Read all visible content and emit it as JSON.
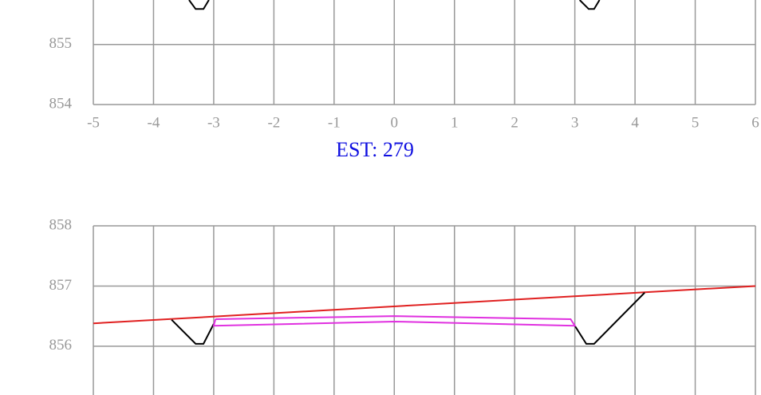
{
  "chart_data": [
    {
      "type": "line",
      "xlim": [
        -5,
        6
      ],
      "xticks": [
        -5,
        -4,
        -3,
        -2,
        -1,
        0,
        1,
        2,
        3,
        4,
        5,
        6
      ],
      "ylim": [
        854,
        855.74
      ],
      "yticks": [
        854,
        855
      ],
      "grid": true,
      "lines": [
        {
          "color": "#000000",
          "x": [
            -3.41,
            -3.3,
            -3.17,
            -3.08
          ],
          "y": [
            855.74,
            855.59,
            855.59,
            855.74
          ]
        },
        {
          "color": "#000000",
          "x": [
            3.08,
            3.23,
            3.32,
            3.41
          ],
          "y": [
            855.74,
            855.59,
            855.59,
            855.74
          ]
        }
      ]
    },
    {
      "type": "line",
      "title": "EST: 279",
      "xlim": [
        -5,
        6
      ],
      "xticks": [
        -5,
        -4,
        -3,
        -2,
        -1,
        0,
        1,
        2,
        3,
        4,
        5,
        6
      ],
      "ylim": [
        855.19,
        858
      ],
      "yticks": [
        856,
        857,
        858
      ],
      "grid": true,
      "lines": [
        {
          "color": "#e02020",
          "x": [
            -5,
            6
          ],
          "y": [
            856.38,
            857.0
          ]
        },
        {
          "color": "#000000",
          "x": [
            -3.7,
            -3.3,
            -3.17,
            -3.0
          ],
          "y": [
            856.44,
            856.04,
            856.04,
            856.37
          ]
        },
        {
          "color": "#000000",
          "x": [
            3.0,
            3.19,
            3.32,
            4.16
          ],
          "y": [
            856.34,
            856.04,
            856.04,
            856.89
          ]
        },
        {
          "color": "#e030e0",
          "x": [
            -2.97,
            0,
            2.93,
            3.0,
            0,
            -3.0,
            -2.97
          ],
          "y": [
            856.45,
            856.5,
            856.45,
            856.34,
            856.41,
            856.34,
            856.45
          ]
        }
      ]
    }
  ]
}
